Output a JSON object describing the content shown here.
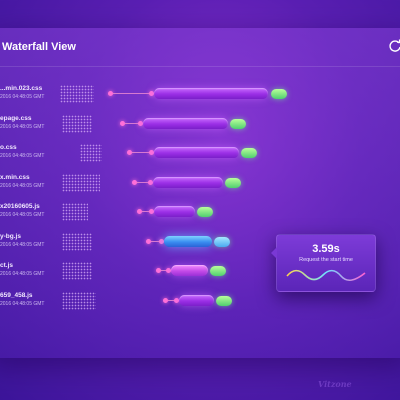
{
  "header": {
    "title": "Waterfall View",
    "refresh_icon": "refresh-icon"
  },
  "requests": [
    {
      "name": "...min.023.css",
      "time": "2016 04:48:05 GMT",
      "offset": 0.0,
      "duration": 0.62,
      "wait": 0.22
    },
    {
      "name": "epage.css",
      "time": "2016 04:48:05 GMT",
      "offset": 0.1,
      "duration": 0.46,
      "wait": 0.1
    },
    {
      "name": "o.css",
      "time": "2016 04:48:05 GMT",
      "offset": 0.16,
      "duration": 0.46,
      "wait": 0.12
    },
    {
      "name": "x.min.css",
      "time": "2016 04:48:05 GMT",
      "offset": 0.2,
      "duration": 0.38,
      "wait": 0.09
    },
    {
      "name": "x20160605.js",
      "time": "2016 04:48:05 GMT",
      "offset": 0.24,
      "duration": 0.22,
      "wait": 0.07
    },
    {
      "name": "y-bg.js",
      "time": "2016 04:48:05 GMT",
      "offset": 0.32,
      "duration": 0.26,
      "wait": 0.07,
      "selected": true
    },
    {
      "name": "ct.js",
      "time": "2016 04:48:05 GMT",
      "offset": 0.4,
      "duration": 0.2,
      "wait": 0.06
    },
    {
      "name": "659_458.js",
      "time": "2016 04:48:05 GMT",
      "offset": 0.46,
      "duration": 0.19,
      "wait": 0.06
    }
  ],
  "tooltip": {
    "value": "3.59s",
    "label": "Request the start time"
  },
  "watermark": {
    "text": "Vit",
    "small": "zone"
  },
  "colors": {
    "accent": "#9b2fe6",
    "selected": "#3a8df0",
    "end_cap": "#4fcf6f",
    "marker": "#ff6fd8"
  }
}
